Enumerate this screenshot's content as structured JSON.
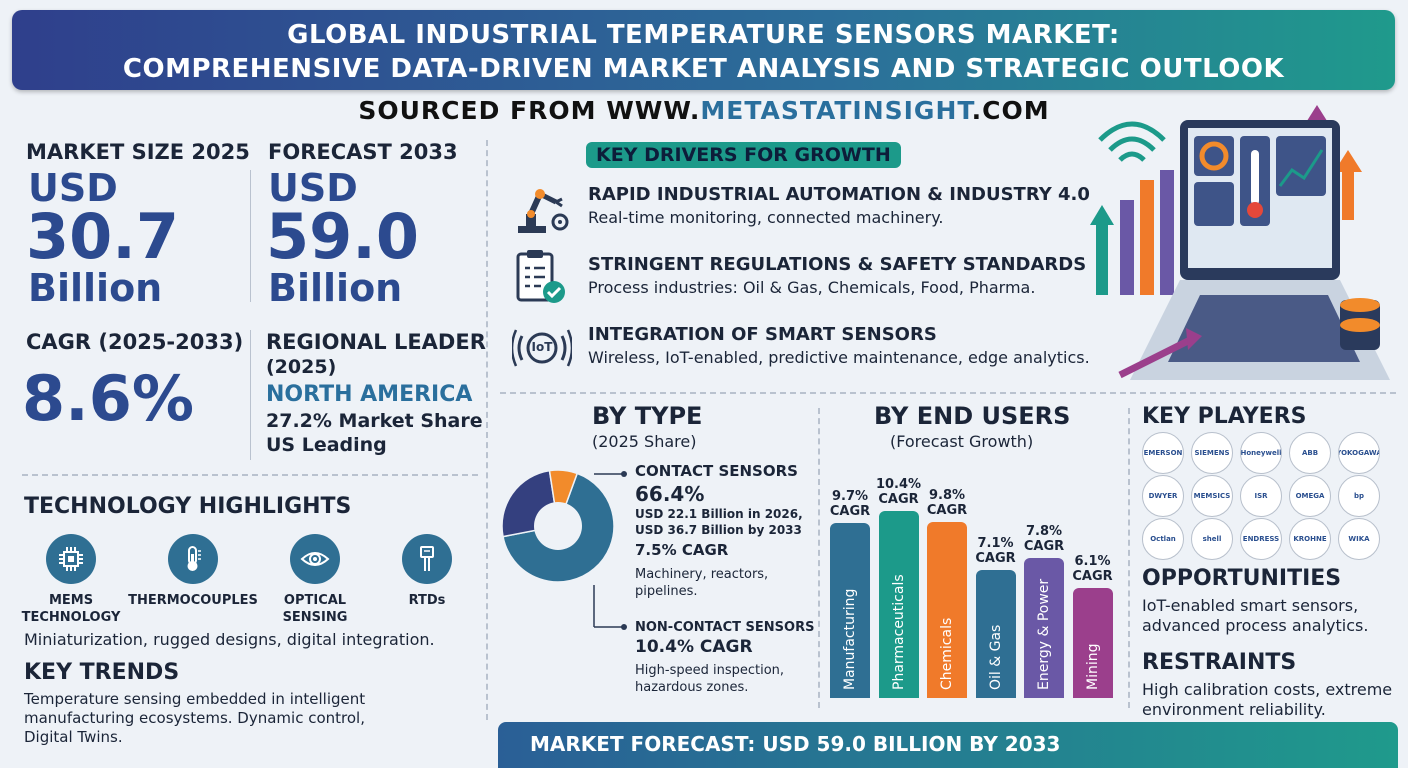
{
  "header": {
    "title_line1": "GLOBAL INDUSTRIAL TEMPERATURE SENSORS MARKET:",
    "title_line2": "COMPREHENSIVE DATA-DRIVEN MARKET ANALYSIS  AND STRATEGIC OUTLOOK",
    "source_prefix": "SOURCED FROM WWW.",
    "source_highlight": "METASTATINSIGHT",
    "source_suffix": ".COM"
  },
  "market_size": {
    "label": "MARKET SIZE 2025",
    "currency": "USD",
    "value": "30.7",
    "unit": "Billion"
  },
  "forecast": {
    "label": "FORECAST 2033",
    "currency": "USD",
    "value": "59.0",
    "unit": "Billion"
  },
  "cagr": {
    "label": "CAGR (2025-2033)",
    "value": "8.6%"
  },
  "regional": {
    "label_line1": "REGIONAL LEADER",
    "label_line2": "(2025)",
    "region": "NORTH AMERICA",
    "share": "27.2% Market Share",
    "leader": "US Leading"
  },
  "technology": {
    "title": "TECHNOLOGY HIGHLIGHTS",
    "items": [
      {
        "label_line1": "MEMS",
        "label_line2": "TECHNOLOGY",
        "icon": "chip-icon"
      },
      {
        "label_line1": "THERMOCOUPLES",
        "label_line2": "",
        "icon": "thermometer-icon"
      },
      {
        "label_line1": "OPTICAL",
        "label_line2": "SENSING",
        "icon": "eye-icon"
      },
      {
        "label_line1": "RTDs",
        "label_line2": "",
        "icon": "probe-icon"
      }
    ],
    "caption": "Miniaturization, rugged designs, digital integration."
  },
  "key_trends": {
    "title": "KEY TRENDS",
    "line1": "Temperature sensing embedded in intelligent",
    "line2": "manufacturing ecosystems. Dynamic control,",
    "line3": "Digital Twins."
  },
  "drivers": {
    "title": "KEY DRIVERS FOR GROWTH",
    "items": [
      {
        "title": "RAPID INDUSTRIAL AUTOMATION & INDUSTRY 4.0",
        "desc": "Real-time monitoring, connected machinery.",
        "icon": "robot-arm-icon"
      },
      {
        "title": "STRINGENT REGULATIONS & SAFETY STANDARDS",
        "desc": "Process industries: Oil & Gas, Chemicals, Food, Pharma.",
        "icon": "checklist-icon"
      },
      {
        "title": "INTEGRATION OF SMART SENSORS",
        "desc": "Wireless, IoT-enabled, predictive maintenance, edge analytics.",
        "icon": "iot-icon",
        "icon_text": "IoT"
      }
    ]
  },
  "by_type": {
    "title": "BY TYPE",
    "subtitle": "(2025 Share)",
    "contact": {
      "label": "CONTACT SENSORS",
      "share": "66.4%",
      "line1": "USD 22.1 Billion in 2026,",
      "line2": "USD 36.7 Billion by 2033",
      "cagr": "7.5% CAGR",
      "desc1": "Machinery, reactors,",
      "desc2": "pipelines."
    },
    "non_contact": {
      "label": "NON-CONTACT SENSORS",
      "cagr": "10.4% CAGR",
      "desc1": "High-speed inspection,",
      "desc2": "hazardous zones."
    }
  },
  "chart_data": [
    {
      "type": "pie",
      "categories": [
        "Contact Sensors",
        "Non-Contact Sensors",
        "Other"
      ],
      "values": [
        66.4,
        25.6,
        8.0
      ],
      "colors": [
        "#2f6f93",
        "#34407f",
        "#f28b2b"
      ]
    },
    {
      "type": "bar",
      "categories": [
        "Manufacturing",
        "Pharmaceuticals",
        "Chemicals",
        "Oil & Gas",
        "Energy & Power",
        "Mining"
      ],
      "values": [
        9.7,
        10.4,
        9.8,
        7.1,
        7.8,
        6.1
      ],
      "value_labels": [
        "9.7%",
        "10.4%",
        "9.8%",
        "7.1%",
        "7.8%",
        "6.1%"
      ],
      "unit_label": "CAGR",
      "colors": [
        "#2f6f93",
        "#1c9a8a",
        "#f07a2a",
        "#2f6f93",
        "#6a58a6",
        "#9b3f8c"
      ],
      "ylim": [
        0,
        11
      ]
    }
  ],
  "by_end_users": {
    "title": "BY END USERS",
    "subtitle": "(Forecast Growth)"
  },
  "key_players": {
    "title": "KEY PLAYERS",
    "logos": [
      "EMERSON",
      "SIEMENS",
      "Honeywell",
      "ABB",
      "YOKOGAWA",
      "DWYER",
      "MEMSICS",
      "ISR",
      "OMEGA",
      "bp",
      "Octlan",
      "shell",
      "ENDRESS",
      "KROHNE",
      "WIKA"
    ]
  },
  "opportunities": {
    "title": "OPPORTUNITIES",
    "line1": "IoT-enabled smart sensors,",
    "line2": "advanced process analytics."
  },
  "restraints": {
    "title": "RESTRAINTS",
    "line1": "High calibration costs, extreme",
    "line2": "environment reliability."
  },
  "footer": {
    "text": "MARKET FORECAST: USD 59.0 BILLION BY 2033"
  }
}
